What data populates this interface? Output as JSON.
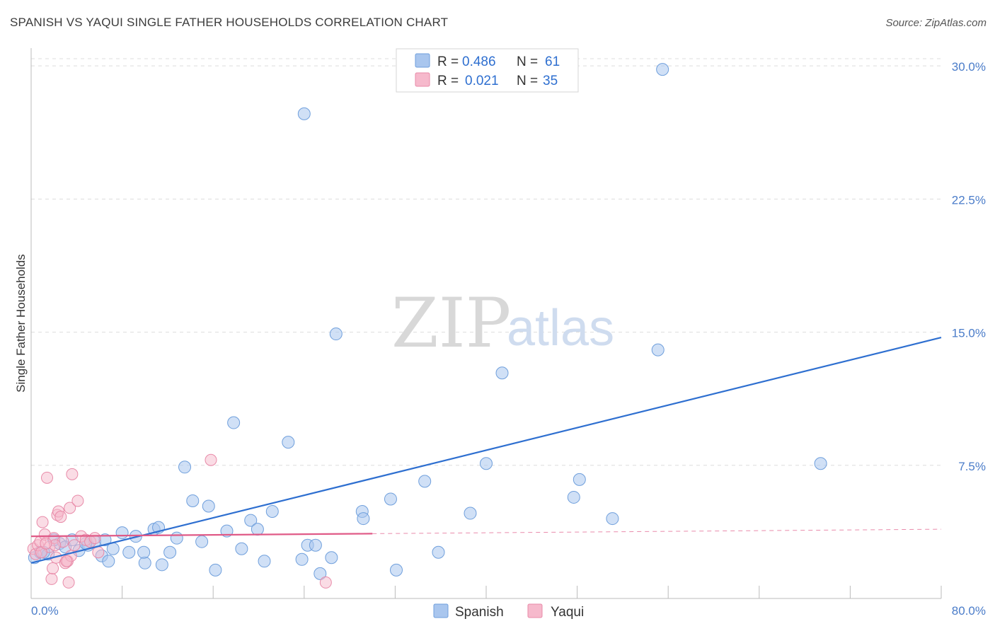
{
  "title": "SPANISH VS YAQUI SINGLE FATHER HOUSEHOLDS CORRELATION CHART",
  "source": "Source: ZipAtlas.com",
  "colors": {
    "spanish_fill": "#a9c6ee",
    "spanish_stroke": "#6f9fdc",
    "spanish_line": "#2e6fd0",
    "yaqui_fill": "#f6b9cc",
    "yaqui_stroke": "#e88aa8",
    "yaqui_line": "#e05a87",
    "tick_text": "#4a7cc9",
    "grid": "#dddddd"
  },
  "legend": {
    "r_label": "R =",
    "n_label": "N =",
    "spanish": {
      "r": "0.486",
      "n": "61"
    },
    "yaqui": {
      "r": "0.021",
      "n": "35"
    }
  },
  "watermark": {
    "zip": "ZIP",
    "atlas": "atlas"
  },
  "chart_data": {
    "type": "scatter",
    "title": "SPANISH VS YAQUI SINGLE FATHER HOUSEHOLDS CORRELATION CHART",
    "xlabel": "",
    "ylabel": "Single Father Households",
    "xlim": [
      0,
      80
    ],
    "ylim": [
      0,
      31
    ],
    "x_tick_labels": [
      "0.0%",
      "80.0%"
    ],
    "y_ticks": [
      7.5,
      15.0,
      22.5,
      30.0
    ],
    "y_tick_labels": [
      "7.5%",
      "15.0%",
      "22.5%",
      "30.0%"
    ],
    "grid": true,
    "legend_position": "top-center",
    "series": [
      {
        "name": "Spanish",
        "r": 0.486,
        "n": 61,
        "trend": {
          "x": [
            0,
            80
          ],
          "y": [
            2.0,
            14.7
          ],
          "dashed_from": null
        },
        "points": [
          [
            0.3,
            2.3
          ],
          [
            0.8,
            2.6
          ],
          [
            1.5,
            2.5
          ],
          [
            2.5,
            3.1
          ],
          [
            3.0,
            2.9
          ],
          [
            3.6,
            3.3
          ],
          [
            4.2,
            2.7
          ],
          [
            5.0,
            3.0
          ],
          [
            5.6,
            3.2
          ],
          [
            6.2,
            2.4
          ],
          [
            6.8,
            2.1
          ],
          [
            7.2,
            2.8
          ],
          [
            8.0,
            3.7
          ],
          [
            8.6,
            2.6
          ],
          [
            9.2,
            3.5
          ],
          [
            10.0,
            2.0
          ],
          [
            10.8,
            3.9
          ],
          [
            11.5,
            1.9
          ],
          [
            12.2,
            2.6
          ],
          [
            12.8,
            3.4
          ],
          [
            13.5,
            7.4
          ],
          [
            14.2,
            5.5
          ],
          [
            15.0,
            3.2
          ],
          [
            15.6,
            5.2
          ],
          [
            16.2,
            1.6
          ],
          [
            17.2,
            3.8
          ],
          [
            17.8,
            9.9
          ],
          [
            18.5,
            2.8
          ],
          [
            19.3,
            4.4
          ],
          [
            19.9,
            3.9
          ],
          [
            20.5,
            2.1
          ],
          [
            21.2,
            4.9
          ],
          [
            22.6,
            8.8
          ],
          [
            23.8,
            2.2
          ],
          [
            24.3,
            3.0
          ],
          [
            25.4,
            1.4
          ],
          [
            26.4,
            2.3
          ],
          [
            26.8,
            14.9
          ],
          [
            24.0,
            27.3
          ],
          [
            29.1,
            4.9
          ],
          [
            29.2,
            4.5
          ],
          [
            31.6,
            5.6
          ],
          [
            34.6,
            6.6
          ],
          [
            35.8,
            2.6
          ],
          [
            38.6,
            4.8
          ],
          [
            40.0,
            7.6
          ],
          [
            41.4,
            12.7
          ],
          [
            47.7,
            5.7
          ],
          [
            48.2,
            6.7
          ],
          [
            51.1,
            4.5
          ],
          [
            55.1,
            14.0
          ],
          [
            55.5,
            29.8
          ],
          [
            69.4,
            7.6
          ],
          [
            32.1,
            1.6
          ],
          [
            2.0,
            3.3
          ],
          [
            6.5,
            3.3
          ],
          [
            9.9,
            2.6
          ],
          [
            4.8,
            3.1
          ],
          [
            1.1,
            2.6
          ],
          [
            11.2,
            4.0
          ],
          [
            25.0,
            3.0
          ]
        ]
      },
      {
        "name": "Yaqui",
        "r": 0.021,
        "n": 35,
        "trend": {
          "x": [
            0,
            80
          ],
          "y": [
            3.5,
            3.9
          ],
          "solid_until_x": 30
        },
        "points": [
          [
            0.2,
            2.8
          ],
          [
            0.4,
            2.5
          ],
          [
            0.6,
            3.0
          ],
          [
            0.8,
            3.2
          ],
          [
            1.0,
            4.3
          ],
          [
            1.2,
            3.6
          ],
          [
            1.4,
            6.8
          ],
          [
            1.6,
            2.9
          ],
          [
            1.8,
            1.1
          ],
          [
            1.9,
            1.7
          ],
          [
            2.0,
            3.4
          ],
          [
            2.2,
            2.3
          ],
          [
            2.3,
            4.7
          ],
          [
            2.4,
            4.9
          ],
          [
            2.6,
            4.6
          ],
          [
            2.8,
            3.2
          ],
          [
            3.0,
            2.0
          ],
          [
            3.2,
            2.1
          ],
          [
            3.3,
            0.9
          ],
          [
            3.4,
            5.1
          ],
          [
            3.5,
            2.4
          ],
          [
            3.6,
            7.0
          ],
          [
            3.8,
            3.0
          ],
          [
            4.1,
            5.5
          ],
          [
            4.4,
            3.5
          ],
          [
            4.8,
            3.3
          ],
          [
            5.2,
            3.2
          ],
          [
            5.6,
            3.4
          ],
          [
            5.9,
            2.6
          ],
          [
            15.8,
            7.8
          ],
          [
            25.9,
            0.9
          ],
          [
            0.9,
            2.6
          ],
          [
            2.1,
            3.0
          ],
          [
            1.3,
            3.1
          ],
          [
            3.1,
            2.1
          ]
        ]
      }
    ]
  },
  "bottom_legend": [
    "Spanish",
    "Yaqui"
  ]
}
